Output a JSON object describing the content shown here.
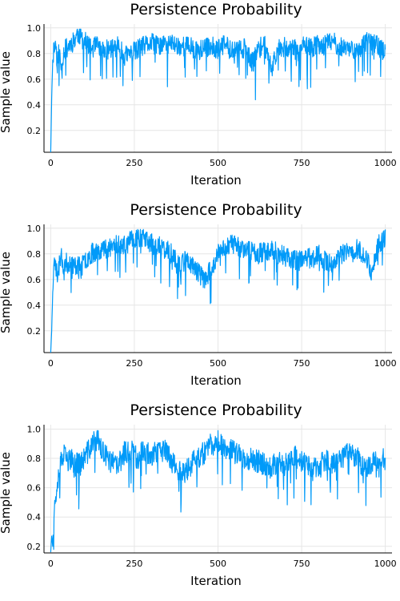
{
  "chart_data": [
    {
      "type": "line",
      "title": "Persistence Probability",
      "xlabel": "Iteration",
      "ylabel": "Sample value",
      "xlim": [
        -20,
        1020
      ],
      "ylim": [
        0.03,
        1.03
      ],
      "xticks": [
        0,
        250,
        500,
        750,
        1000
      ],
      "xtick_labels": [
        "0",
        "250",
        "500",
        "750",
        "1000"
      ],
      "yticks": [
        0.2,
        0.4,
        0.6,
        0.8,
        1.0
      ],
      "ytick_labels": [
        "0.2",
        "0.4",
        "0.6",
        "0.8",
        "1.0"
      ],
      "grid": true,
      "color": "#009af9",
      "seed": 11,
      "series": [
        {
          "x": [
            0,
            3,
            6,
            10,
            15,
            20,
            25,
            30,
            40,
            50,
            60,
            70,
            80,
            90,
            100,
            120,
            140,
            160,
            180,
            200,
            220,
            240,
            260,
            280,
            300,
            320,
            340,
            360,
            380,
            400,
            420,
            440,
            460,
            480,
            500,
            520,
            540,
            560,
            580,
            600,
            620,
            640,
            660,
            680,
            700,
            720,
            740,
            760,
            780,
            800,
            820,
            840,
            860,
            880,
            900,
            920,
            940,
            960,
            980,
            1000
          ],
          "values": [
            0.03,
            0.45,
            0.75,
            0.85,
            0.88,
            0.72,
            0.85,
            0.7,
            0.82,
            0.85,
            0.88,
            0.9,
            0.96,
            0.93,
            0.9,
            0.84,
            0.86,
            0.82,
            0.84,
            0.86,
            0.78,
            0.8,
            0.83,
            0.86,
            0.88,
            0.86,
            0.87,
            0.88,
            0.86,
            0.86,
            0.85,
            0.82,
            0.84,
            0.86,
            0.83,
            0.87,
            0.84,
            0.82,
            0.85,
            0.72,
            0.84,
            0.86,
            0.68,
            0.86,
            0.85,
            0.84,
            0.82,
            0.86,
            0.84,
            0.88,
            0.86,
            0.9,
            0.86,
            0.84,
            0.85,
            0.8,
            0.88,
            0.9,
            0.86,
            0.8
          ]
        }
      ]
    },
    {
      "type": "line",
      "title": "Persistence Probability",
      "xlabel": "Iteration",
      "ylabel": "Sample value",
      "xlim": [
        -20,
        1020
      ],
      "ylim": [
        0.03,
        1.03
      ],
      "xticks": [
        0,
        250,
        500,
        750,
        1000
      ],
      "xtick_labels": [
        "0",
        "250",
        "500",
        "750",
        "1000"
      ],
      "yticks": [
        0.2,
        0.4,
        0.6,
        0.8,
        1.0
      ],
      "ytick_labels": [
        "0.2",
        "0.4",
        "0.6",
        "0.8",
        "1.0"
      ],
      "grid": true,
      "color": "#009af9",
      "seed": 23,
      "series": [
        {
          "x": [
            0,
            3,
            6,
            10,
            15,
            20,
            25,
            30,
            40,
            50,
            60,
            70,
            80,
            90,
            100,
            120,
            140,
            160,
            180,
            200,
            220,
            240,
            260,
            280,
            300,
            320,
            340,
            360,
            380,
            400,
            420,
            440,
            460,
            480,
            500,
            520,
            540,
            560,
            580,
            600,
            620,
            640,
            660,
            680,
            700,
            720,
            740,
            760,
            780,
            800,
            820,
            840,
            860,
            880,
            900,
            920,
            940,
            960,
            980,
            1000
          ],
          "values": [
            0.03,
            0.2,
            0.5,
            0.7,
            0.72,
            0.62,
            0.7,
            0.78,
            0.74,
            0.72,
            0.75,
            0.7,
            0.72,
            0.68,
            0.74,
            0.8,
            0.83,
            0.84,
            0.86,
            0.88,
            0.86,
            0.9,
            0.94,
            0.92,
            0.88,
            0.86,
            0.84,
            0.8,
            0.72,
            0.76,
            0.72,
            0.66,
            0.6,
            0.68,
            0.8,
            0.86,
            0.88,
            0.86,
            0.84,
            0.82,
            0.8,
            0.82,
            0.84,
            0.8,
            0.78,
            0.76,
            0.74,
            0.78,
            0.76,
            0.8,
            0.74,
            0.72,
            0.78,
            0.8,
            0.82,
            0.84,
            0.78,
            0.66,
            0.88,
            0.92
          ]
        }
      ]
    },
    {
      "type": "line",
      "title": "Persistence Probability",
      "xlabel": "Iteration",
      "ylabel": "Sample value",
      "xlim": [
        -20,
        1020
      ],
      "ylim": [
        0.155,
        1.03
      ],
      "xticks": [
        0,
        250,
        500,
        750,
        1000
      ],
      "xtick_labels": [
        "0",
        "250",
        "500",
        "750",
        "1000"
      ],
      "yticks": [
        0.2,
        0.4,
        0.6,
        0.8,
        1.0
      ],
      "ytick_labels": [
        "0.2",
        "0.4",
        "0.6",
        "0.8",
        "1.0"
      ],
      "grid": true,
      "color": "#009af9",
      "seed": 37,
      "series": [
        {
          "x": [
            0,
            3,
            6,
            10,
            15,
            20,
            25,
            30,
            40,
            50,
            60,
            70,
            80,
            90,
            100,
            120,
            140,
            160,
            180,
            200,
            220,
            240,
            260,
            280,
            300,
            320,
            340,
            360,
            380,
            400,
            420,
            440,
            460,
            480,
            500,
            520,
            540,
            560,
            580,
            600,
            620,
            640,
            660,
            680,
            700,
            720,
            740,
            760,
            780,
            800,
            820,
            840,
            860,
            880,
            900,
            920,
            940,
            960,
            980,
            1000
          ],
          "values": [
            0.16,
            0.27,
            0.2,
            0.42,
            0.55,
            0.65,
            0.72,
            0.76,
            0.82,
            0.78,
            0.8,
            0.74,
            0.78,
            0.76,
            0.8,
            0.88,
            0.94,
            0.82,
            0.78,
            0.74,
            0.84,
            0.86,
            0.8,
            0.86,
            0.82,
            0.84,
            0.86,
            0.8,
            0.72,
            0.7,
            0.76,
            0.8,
            0.84,
            0.9,
            0.92,
            0.88,
            0.86,
            0.82,
            0.8,
            0.8,
            0.78,
            0.76,
            0.74,
            0.78,
            0.76,
            0.82,
            0.8,
            0.76,
            0.72,
            0.74,
            0.78,
            0.76,
            0.8,
            0.82,
            0.84,
            0.8,
            0.72,
            0.78,
            0.8,
            0.8
          ]
        }
      ]
    }
  ]
}
